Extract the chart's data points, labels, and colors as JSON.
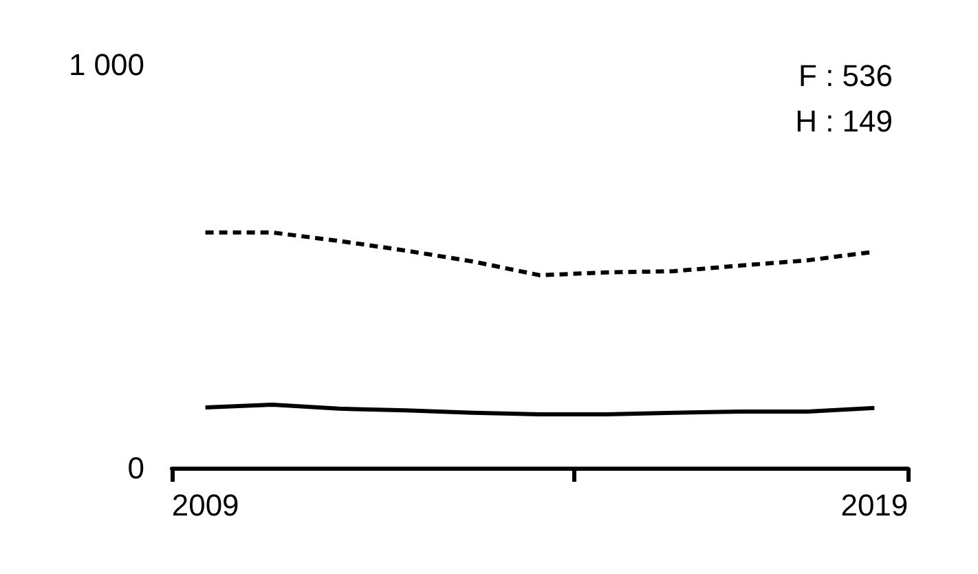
{
  "chart_data": {
    "type": "line",
    "x": [
      2009,
      2010,
      2011,
      2012,
      2013,
      2014,
      2015,
      2016,
      2017,
      2018,
      2019
    ],
    "series": [
      {
        "color": "#000000",
        "line_style": "dashed",
        "values": [
          584,
          584,
          563,
          539,
          512,
          478,
          485,
          488,
          502,
          515,
          536
        ]
      },
      {
        "color": "#000000",
        "line_style": "solid",
        "values": [
          150,
          157,
          147,
          143,
          137,
          133,
          133,
          137,
          140,
          140,
          149
        ]
      }
    ],
    "xlim": [
      2008.5,
      2019.5
    ],
    "xticks": [
      {
        "value": 2008.5,
        "label": null
      },
      {
        "value": 2009,
        "label": "2009"
      },
      {
        "value": 2014.5,
        "label": null
      },
      {
        "value": 2019,
        "label": "2019"
      },
      {
        "value": 2019.5,
        "label": null
      }
    ],
    "ylim": [
      0,
      1000
    ],
    "yticks": [
      {
        "value": 0,
        "label": "0"
      },
      {
        "value": 1000,
        "label": "1 000"
      }
    ],
    "annotations": [
      "F : 536",
      "H : 149"
    ],
    "marker": "none",
    "grid": false
  }
}
